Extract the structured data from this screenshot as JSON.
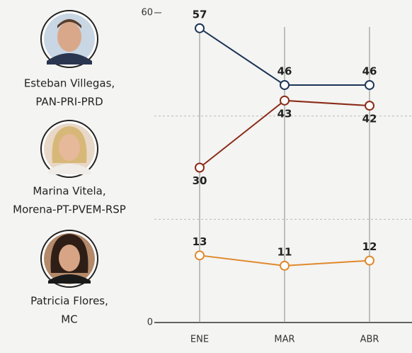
{
  "chart_data": {
    "type": "line",
    "categories": [
      "ENE",
      "MAR",
      "ABR"
    ],
    "series": [
      {
        "name": "Esteban Villegas,",
        "party": "PAN-PRI-PRD",
        "color": "#1d3557",
        "values": [
          57,
          46,
          46
        ]
      },
      {
        "name": "Marina Vitela,",
        "party": "Morena-PT-PVEM-RSP",
        "color": "#8a2b17",
        "values": [
          30,
          43,
          42
        ]
      },
      {
        "name": "Patricia Flores,",
        "party": "MC",
        "color": "#e0892c",
        "values": [
          13,
          11,
          12
        ]
      }
    ],
    "ylim": [
      0,
      60
    ],
    "yticks": [
      0,
      60
    ],
    "grid_values": [
      20,
      40
    ],
    "grid": true
  }
}
